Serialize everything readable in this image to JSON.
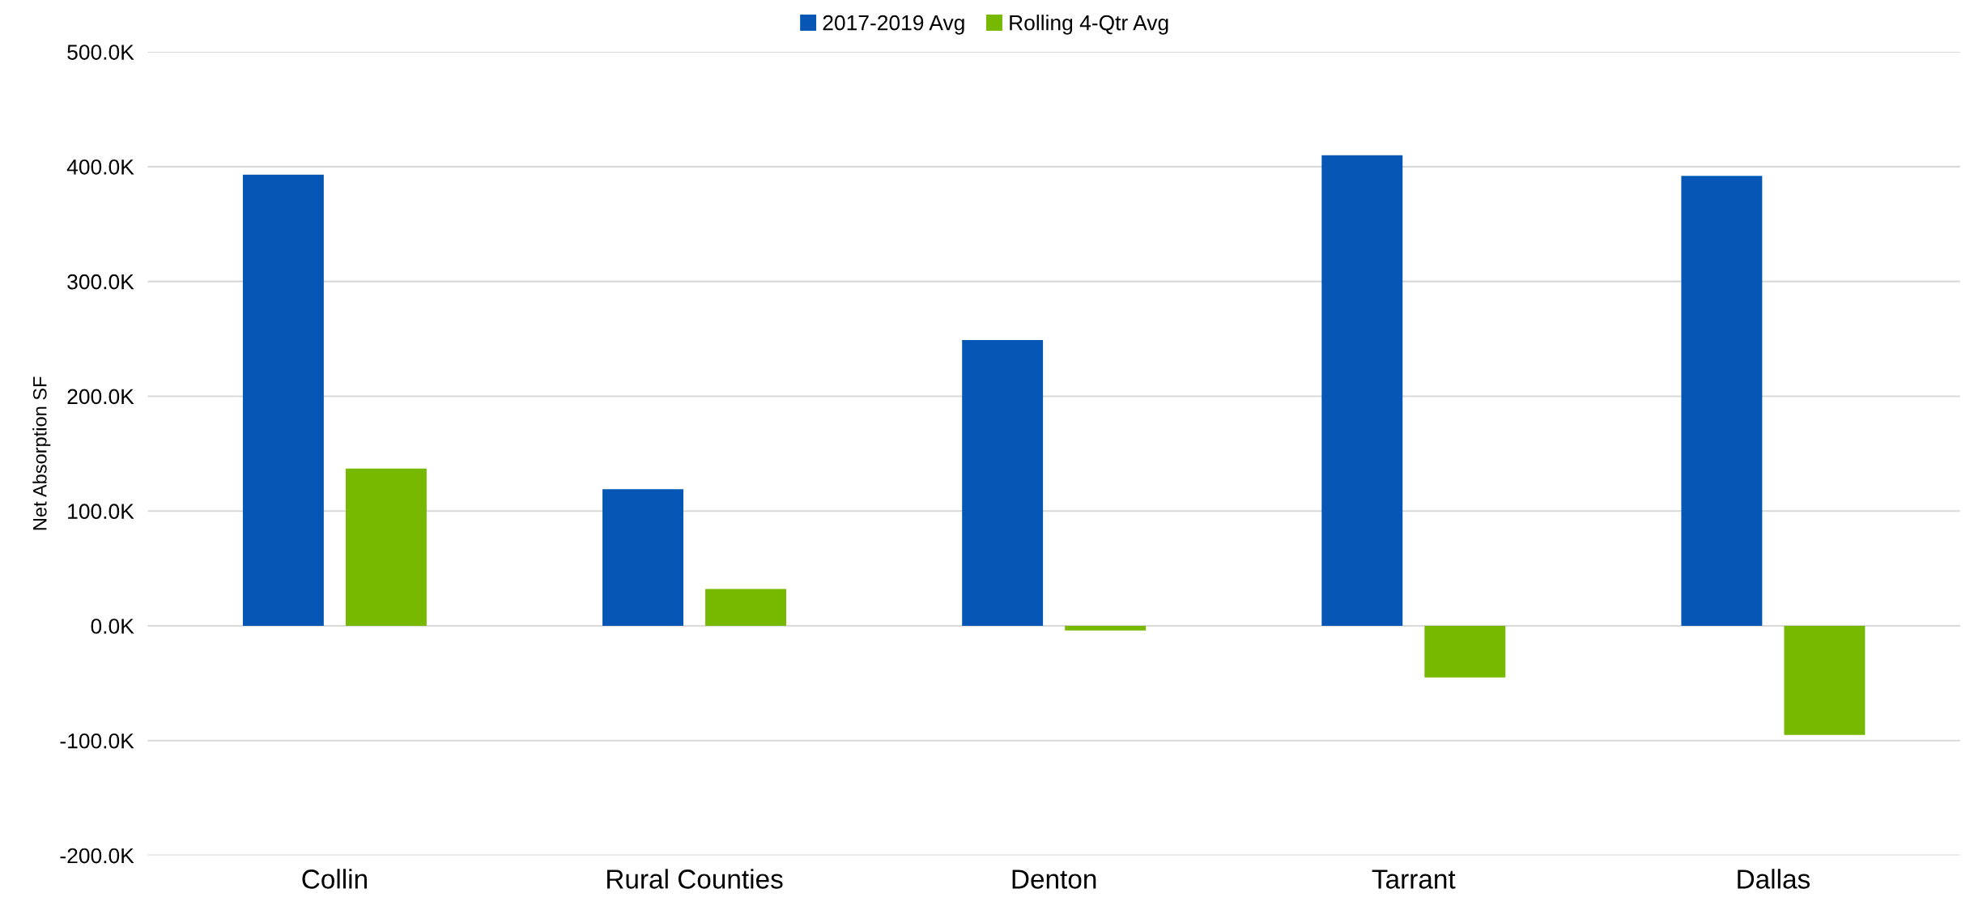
{
  "chart_data": {
    "type": "bar",
    "ylabel": "Net Absorption SF",
    "categories": [
      "Collin",
      "Rural Counties",
      "Denton",
      "Tarrant",
      "Dallas"
    ],
    "series": [
      {
        "name": "2017-2019 Avg",
        "color": "#0657b5",
        "values": [
          393000,
          119000,
          249000,
          410000,
          392000
        ]
      },
      {
        "name": "Rolling 4-Qtr Avg",
        "color": "#76b900",
        "values": [
          137000,
          32000,
          -4000,
          -45000,
          -95000
        ]
      }
    ],
    "ylim": [
      -200000,
      500000
    ],
    "yticks": [
      {
        "value": -200000,
        "label": "-200.0K"
      },
      {
        "value": -100000,
        "label": "-100.0K"
      },
      {
        "value": 0,
        "label": "0.0K"
      },
      {
        "value": 100000,
        "label": "100.0K"
      },
      {
        "value": 200000,
        "label": "200.0K"
      },
      {
        "value": 300000,
        "label": "300.0K"
      },
      {
        "value": 400000,
        "label": "400.0K"
      },
      {
        "value": 500000,
        "label": "500.0K"
      }
    ],
    "grid": "y",
    "legend": "top"
  }
}
